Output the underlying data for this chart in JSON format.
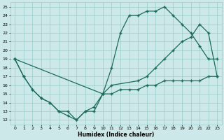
{
  "xlabel": "Humidex (Indice chaleur)",
  "xlim": [
    -0.5,
    23.5
  ],
  "ylim": [
    11.5,
    25.5
  ],
  "yticks": [
    12,
    13,
    14,
    15,
    16,
    17,
    18,
    19,
    20,
    21,
    22,
    23,
    24,
    25
  ],
  "xticks": [
    0,
    1,
    2,
    3,
    4,
    5,
    6,
    7,
    8,
    9,
    10,
    11,
    12,
    13,
    14,
    15,
    16,
    17,
    18,
    19,
    20,
    21,
    22,
    23
  ],
  "bg_color": "#cce8e8",
  "grid_color": "#99cccc",
  "line_color": "#1a6b5a",
  "line1_x": [
    0,
    1,
    2,
    3,
    4,
    5,
    6,
    7,
    8,
    9,
    10,
    11,
    12,
    13,
    14,
    15,
    16,
    17,
    18,
    19,
    20,
    21,
    22,
    23
  ],
  "line1_y": [
    19,
    17,
    15.5,
    14.5,
    14,
    13,
    12.5,
    12,
    13,
    13,
    15,
    15,
    15.5,
    15.5,
    15.5,
    16,
    16,
    16.5,
    16.5,
    16.5,
    16.5,
    16.5,
    17,
    17
  ],
  "line2_x": [
    0,
    1,
    2,
    3,
    4,
    5,
    6,
    7,
    8,
    9,
    10,
    11,
    12,
    13,
    14,
    15,
    16,
    17,
    18,
    19,
    20,
    21,
    22,
    23
  ],
  "line2_y": [
    19,
    17,
    15.5,
    14.5,
    14,
    13,
    13,
    12,
    13,
    13.5,
    15,
    18,
    22,
    24,
    24,
    24.5,
    24.5,
    25,
    24,
    23,
    22,
    20.5,
    19,
    19
  ],
  "line3_x": [
    0,
    10,
    11,
    14,
    15,
    16,
    17,
    18,
    19,
    20,
    21,
    22,
    23
  ],
  "line3_y": [
    19,
    15,
    16,
    16.5,
    17,
    18,
    19,
    20,
    21,
    21.5,
    23,
    22,
    17
  ]
}
